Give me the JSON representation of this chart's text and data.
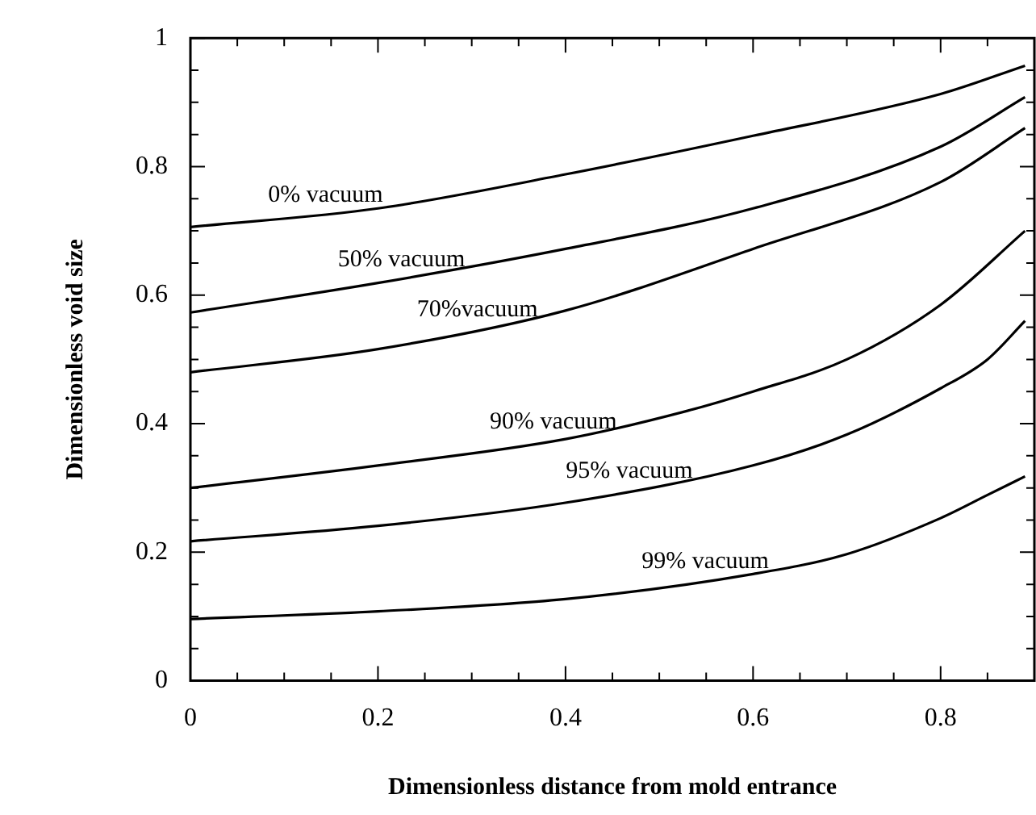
{
  "chart_data": {
    "type": "line",
    "xlabel": "Dimensionless distance from mold entrance",
    "ylabel": "Dimensionless void size",
    "xlim": [
      0,
      0.9
    ],
    "ylim": [
      0,
      1
    ],
    "xticks": [
      0,
      {
        "value": 0.05,
        "label": null
      },
      0.2,
      {
        "value": 0.1,
        "label": null
      },
      {
        "value": 0.15,
        "label": null
      },
      {
        "value": 0.25,
        "label": null
      },
      {
        "value": 0.3,
        "label": null
      },
      {
        "value": 0.35,
        "label": null
      },
      0.4,
      {
        "value": 0.45,
        "label": null
      },
      {
        "value": 0.5,
        "label": null
      },
      {
        "value": 0.55,
        "label": null
      },
      0.6,
      {
        "value": 0.65,
        "label": null
      },
      {
        "value": 0.7,
        "label": null
      },
      {
        "value": 0.75,
        "label": null
      },
      0.8,
      {
        "value": 0.85,
        "label": null
      }
    ],
    "yticks": [
      0,
      {
        "value": 0.05,
        "label": null
      },
      {
        "value": 0.1,
        "label": null
      },
      {
        "value": 0.15,
        "label": null
      },
      0.2,
      {
        "value": 0.25,
        "label": null
      },
      {
        "value": 0.3,
        "label": null
      },
      {
        "value": 0.35,
        "label": null
      },
      0.4,
      {
        "value": 0.45,
        "label": null
      },
      {
        "value": 0.5,
        "label": null
      },
      {
        "value": 0.55,
        "label": null
      },
      0.6,
      {
        "value": 0.65,
        "label": null
      },
      {
        "value": 0.7,
        "label": null
      },
      {
        "value": 0.75,
        "label": null
      },
      0.8,
      {
        "value": 0.85,
        "label": null
      },
      {
        "value": 0.9,
        "label": null
      },
      {
        "value": 0.95,
        "label": null
      },
      1
    ],
    "grid": false,
    "legend": false,
    "marker": "none",
    "line_style": "solid",
    "series": [
      {
        "name": "0% vacuum",
        "color": "#000000",
        "x": [
          0,
          0.2,
          0.4,
          0.6,
          0.8,
          0.89
        ],
        "values": [
          0.706,
          0.735,
          0.788,
          0.848,
          0.913,
          0.957
        ]
      },
      {
        "name": "50% vacuum",
        "color": "#000000",
        "x": [
          0,
          0.2,
          0.4,
          0.6,
          0.8,
          0.89
        ],
        "values": [
          0.573,
          0.619,
          0.672,
          0.735,
          0.831,
          0.908
        ]
      },
      {
        "name": "70%vacuum",
        "color": "#000000",
        "x": [
          0,
          0.2,
          0.4,
          0.6,
          0.8,
          0.89
        ],
        "values": [
          0.48,
          0.516,
          0.576,
          0.672,
          0.776,
          0.86
        ]
      },
      {
        "name": "90% vacuum",
        "color": "#000000",
        "x": [
          0,
          0.2,
          0.4,
          0.53,
          0.6,
          0.7,
          0.8,
          0.89
        ],
        "values": [
          0.3,
          0.335,
          0.376,
          0.42,
          0.45,
          0.5,
          0.585,
          0.7
        ]
      },
      {
        "name": "95% vacuum",
        "color": "#000000",
        "x": [
          0,
          0.2,
          0.4,
          0.6,
          0.7,
          0.8,
          0.85,
          0.89
        ],
        "values": [
          0.217,
          0.241,
          0.277,
          0.335,
          0.383,
          0.455,
          0.5,
          0.56
        ]
      },
      {
        "name": "99% vacuum",
        "color": "#000000",
        "x": [
          0,
          0.2,
          0.4,
          0.6,
          0.7,
          0.8,
          0.85,
          0.89
        ],
        "values": [
          0.096,
          0.108,
          0.127,
          0.166,
          0.197,
          0.253,
          0.289,
          0.318
        ]
      }
    ]
  }
}
